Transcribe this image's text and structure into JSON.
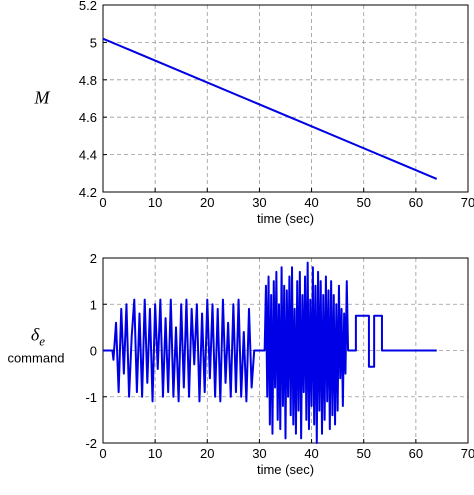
{
  "chart_data": [
    {
      "type": "line",
      "y_label": "M",
      "x_label": "time  (sec)",
      "xlim": [
        0,
        70
      ],
      "xticks": [
        0,
        10,
        20,
        30,
        40,
        50,
        60,
        70
      ],
      "ylim": [
        4.2,
        5.2
      ],
      "yticks": [
        4.2,
        4.4,
        4.6,
        4.8,
        5,
        5.2
      ],
      "grid": true,
      "series": [
        {
          "color": "#0000e6",
          "x": [
            0,
            64
          ],
          "values": [
            5.02,
            4.27
          ]
        }
      ]
    },
    {
      "type": "line",
      "y_label_symbol": "δ",
      "y_label_subscript": "e",
      "y_label_text": "command",
      "x_label": "time  (sec)",
      "xlim": [
        0,
        70
      ],
      "xticks": [
        0,
        10,
        20,
        30,
        40,
        50,
        60,
        70
      ],
      "ylim": [
        -2,
        2
      ],
      "yticks": [
        -2,
        -1,
        0,
        1,
        2
      ],
      "grid": true,
      "series": [
        {
          "color": "#0000e6",
          "x": [
            0,
            1.8,
            2,
            2.5,
            3,
            3.5,
            4,
            4.5,
            5,
            5.5,
            6,
            6.5,
            7,
            7.5,
            8,
            8.5,
            9,
            9.5,
            10,
            10.5,
            11,
            11.5,
            12,
            12.5,
            13,
            13.5,
            14,
            14.5,
            15,
            15.5,
            16,
            16.5,
            17,
            17.5,
            18,
            18.5,
            19,
            19.5,
            20,
            20.5,
            21,
            21.5,
            22,
            22.5,
            23,
            23.5,
            24,
            24.5,
            25,
            25.5,
            26,
            26.5,
            27,
            27.5,
            28,
            28.5,
            29,
            30,
            31,
            31.25,
            31.5,
            31.75,
            32,
            32.25,
            32.5,
            32.75,
            33,
            33.25,
            33.5,
            33.75,
            34,
            34.25,
            34.5,
            34.75,
            35,
            35.25,
            35.5,
            35.75,
            36,
            36.25,
            36.5,
            36.75,
            37,
            37.25,
            37.5,
            37.75,
            38,
            38.25,
            38.5,
            38.75,
            39,
            39.25,
            39.5,
            39.75,
            40,
            40.25,
            40.5,
            40.75,
            41,
            41.25,
            41.5,
            41.75,
            42,
            42.25,
            42.5,
            42.75,
            43,
            43.25,
            43.5,
            43.75,
            44,
            44.25,
            44.5,
            44.75,
            45,
            45.25,
            45.5,
            45.75,
            46,
            46.25,
            46.5,
            46.75,
            47,
            48.5,
            48.5,
            51,
            51,
            52,
            52,
            53.5,
            53.5,
            64
          ],
          "values": [
            0,
            0,
            -0.2,
            0.6,
            -0.9,
            0.9,
            -0.5,
            1.0,
            -1.0,
            0.3,
            1.1,
            -0.9,
            0.8,
            -1.0,
            1.1,
            -0.7,
            0.9,
            -1.1,
            1.0,
            -0.4,
            1.1,
            -1.0,
            0.7,
            -0.9,
            1.1,
            -1.0,
            0.5,
            -1.1,
            1.0,
            -0.8,
            1.1,
            -1.0,
            0.9,
            -0.3,
            1.0,
            -1.1,
            0.8,
            -0.9,
            1.1,
            -0.6,
            1.0,
            -1.0,
            0.9,
            -1.1,
            1.1,
            -0.7,
            0.6,
            -1.0,
            1.0,
            -0.9,
            1.1,
            -1.0,
            0.4,
            -1.1,
            0.9,
            -0.8,
            0,
            0,
            0,
            1.4,
            -1.0,
            1.6,
            -1.6,
            1.2,
            -1.8,
            1.5,
            -0.8,
            1.7,
            -1.5,
            1.0,
            -1.7,
            1.8,
            -1.2,
            1.4,
            -1.9,
            1.3,
            -1.0,
            1.6,
            -1.4,
            1.8,
            -1.6,
            0.9,
            -1.8,
            1.5,
            -1.3,
            1.7,
            -1.9,
            1.2,
            -0.9,
            1.6,
            -1.5,
            1.9,
            -1.7,
            1.1,
            -1.2,
            1.8,
            -1.6,
            1.4,
            -2.0,
            1.7,
            -1.3,
            1.5,
            -1.8,
            1.2,
            -1.5,
            1.6,
            -1.1,
            1.3,
            -1.7,
            1.5,
            -1.4,
            1.2,
            -1.6,
            1.0,
            -1.3,
            1.4,
            -0.6,
            0.9,
            -1.2,
            0.8,
            -0.5,
            1.5,
            0,
            0,
            0.75,
            0.75,
            -0.35,
            -0.35,
            0.75,
            0.75,
            0,
            0
          ]
        }
      ]
    }
  ]
}
